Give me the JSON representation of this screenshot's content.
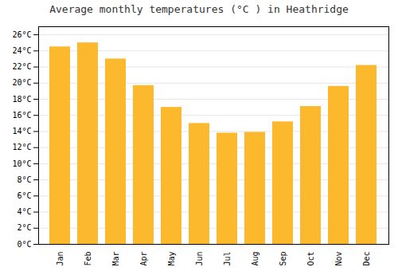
{
  "chart_data": {
    "type": "bar",
    "title": "Average monthly temperatures (°C ) in Heathridge",
    "categories": [
      "Jan",
      "Feb",
      "Mar",
      "Apr",
      "May",
      "Jun",
      "Jul",
      "Aug",
      "Sep",
      "Oct",
      "Nov",
      "Dec"
    ],
    "values": [
      24.5,
      25.0,
      23.0,
      19.7,
      17.0,
      15.0,
      13.8,
      13.9,
      15.2,
      17.1,
      19.6,
      22.2
    ],
    "color": "#FDB92E",
    "ylim": [
      0,
      27
    ],
    "yticks": [
      {
        "value": 0,
        "label": "0°C"
      },
      {
        "value": 2,
        "label": "2°C"
      },
      {
        "value": 4,
        "label": "4°C"
      },
      {
        "value": 6,
        "label": "6°C"
      },
      {
        "value": 8,
        "label": "8°C"
      },
      {
        "value": 10,
        "label": "10°C"
      },
      {
        "value": 12,
        "label": "12°C"
      },
      {
        "value": 14,
        "label": "14°C"
      },
      {
        "value": 16,
        "label": "16°C"
      },
      {
        "value": 18,
        "label": "18°C"
      },
      {
        "value": 20,
        "label": "20°C"
      },
      {
        "value": 22,
        "label": "22°C"
      },
      {
        "value": 24,
        "label": "24°C"
      },
      {
        "value": 26,
        "label": "26°C"
      }
    ],
    "grid": true
  }
}
